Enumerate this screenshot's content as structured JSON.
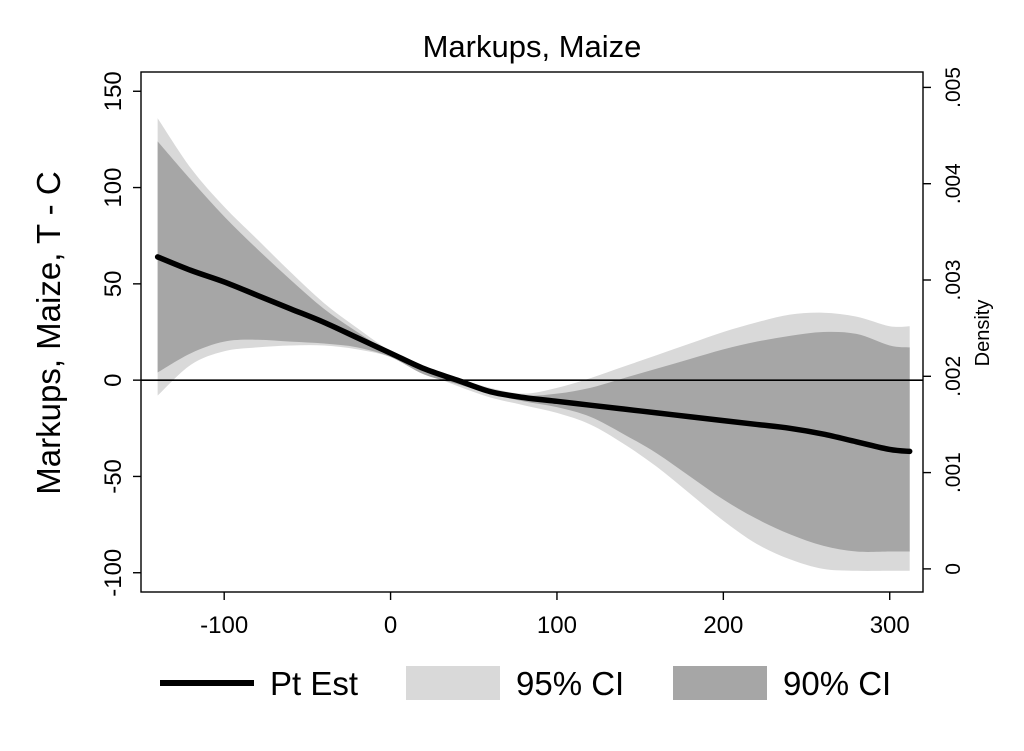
{
  "chart_data": {
    "type": "area",
    "title": "Markups, Maize",
    "ylabel": "Markups, Maize, T - C",
    "y2label": "Density",
    "xlim": [
      -150,
      320
    ],
    "ylim": [
      -110,
      160
    ],
    "y2lim": [
      -0.00024,
      0.00516
    ],
    "xticks": [
      -100,
      0,
      100,
      200,
      300
    ],
    "xtick_labels": [
      "-100",
      "0",
      "100",
      "200",
      "300"
    ],
    "yticks": [
      -100,
      -50,
      0,
      50,
      100,
      150
    ],
    "ytick_labels": [
      "-100",
      "-50",
      "0",
      "50",
      "100",
      "150"
    ],
    "y2ticks": [
      0,
      0.001,
      0.002,
      0.003,
      0.004,
      0.005
    ],
    "y2tick_labels": [
      "0",
      ".001",
      ".002",
      ".003",
      ".004",
      ".005"
    ],
    "hline": 0,
    "grid": false,
    "legend_position": "bottom",
    "x": [
      -140,
      -120,
      -100,
      -80,
      -60,
      -40,
      -20,
      0,
      20,
      40,
      60,
      80,
      100,
      120,
      140,
      160,
      180,
      200,
      220,
      240,
      260,
      280,
      300,
      312
    ],
    "series": [
      {
        "name": "Pt Est",
        "role": "line",
        "color": "#000000",
        "y": [
          64,
          57,
          51,
          44,
          37,
          30,
          22,
          14,
          6,
          0,
          -6,
          -9,
          -11,
          -13,
          -15,
          -17,
          -19,
          -21,
          -23,
          -25,
          -28,
          -32,
          -36,
          -37
        ]
      },
      {
        "name": "95% CI",
        "role": "band",
        "color": "#d9d9d9",
        "upper": [
          136,
          110,
          90,
          73,
          56,
          40,
          27,
          15,
          6,
          1,
          -4,
          -7,
          -4,
          1,
          7,
          13,
          19,
          25,
          30,
          34,
          35,
          33,
          28,
          28
        ],
        "lower": [
          -8,
          8,
          15,
          17,
          18,
          18,
          16,
          12,
          4,
          -3,
          -9,
          -13,
          -17,
          -23,
          -33,
          -45,
          -59,
          -73,
          -85,
          -93,
          -98,
          -99,
          -99,
          -99
        ]
      },
      {
        "name": "90% CI",
        "role": "band",
        "color": "#a6a6a6",
        "upper": [
          124,
          104,
          85,
          68,
          52,
          37,
          25,
          14,
          5,
          0,
          -5,
          -8,
          -7,
          -4,
          1,
          6,
          11,
          16,
          20,
          23,
          25,
          24,
          18,
          17
        ],
        "lower": [
          4,
          14,
          20,
          21,
          20,
          19,
          17,
          12,
          3,
          -2,
          -7,
          -11,
          -14,
          -19,
          -28,
          -38,
          -50,
          -62,
          -72,
          -80,
          -86,
          -89,
          -89,
          -89
        ]
      }
    ]
  },
  "legend": {
    "items": [
      {
        "label": "Pt Est",
        "kind": "line",
        "color": "#000000"
      },
      {
        "label": "95% CI",
        "kind": "box",
        "color": "#d9d9d9"
      },
      {
        "label": "90% CI",
        "kind": "box",
        "color": "#a6a6a6"
      }
    ]
  }
}
